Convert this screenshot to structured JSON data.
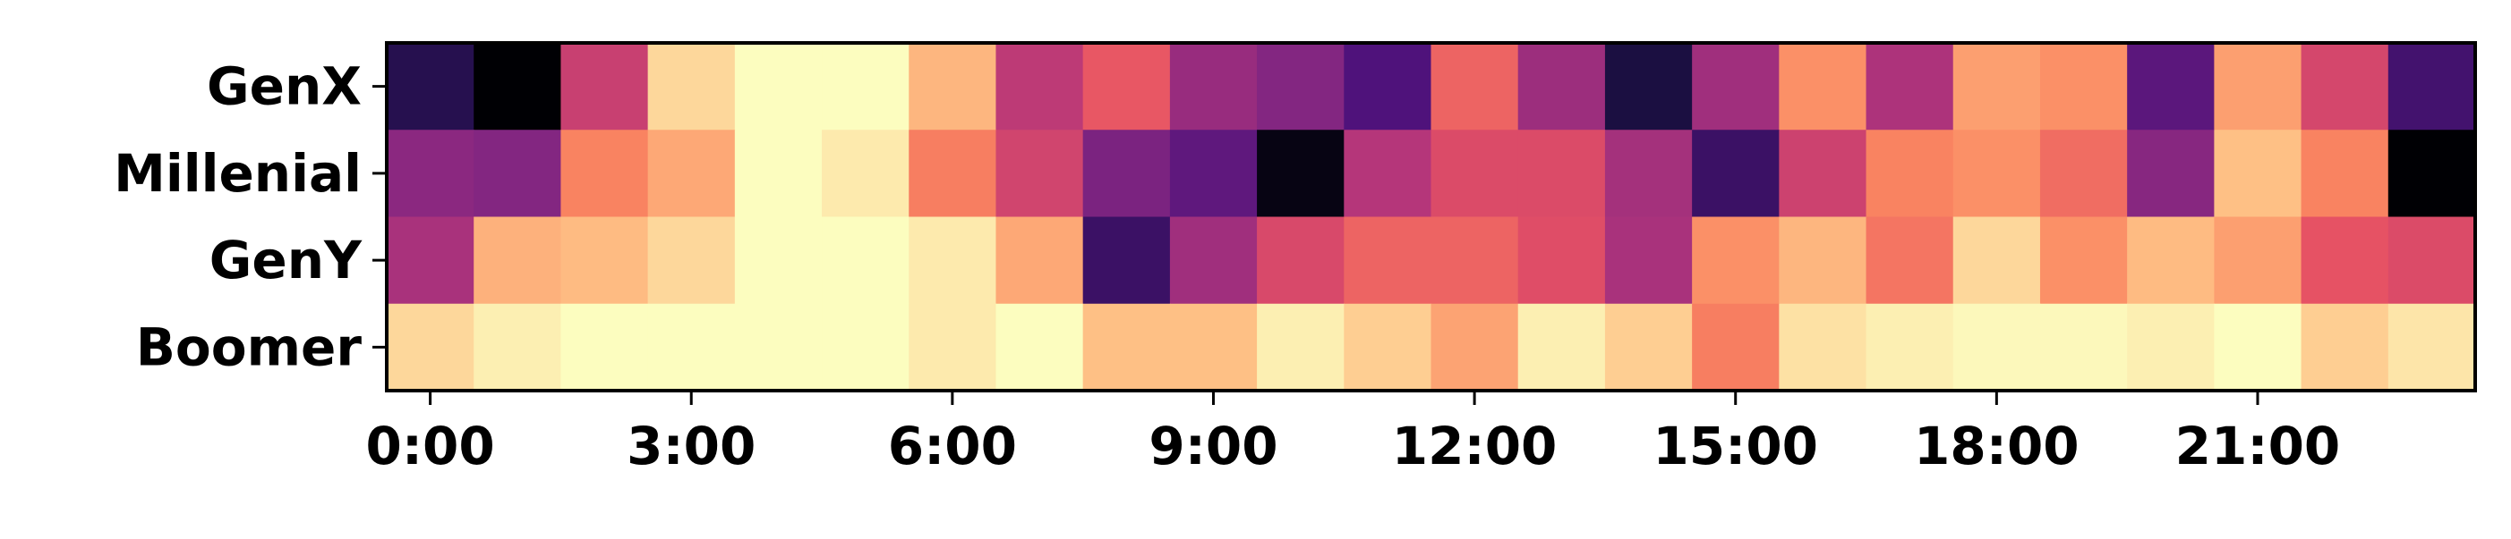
{
  "chart_data": {
    "type": "heatmap",
    "title": "",
    "xlabel": "",
    "ylabel": "",
    "colormap": "magma",
    "value_range": [
      0,
      1
    ],
    "grid": false,
    "legend": "none",
    "rows": [
      "GenX",
      "Millenial",
      "GenY",
      "Boomer"
    ],
    "columns": [
      "0:00",
      "1:00",
      "2:00",
      "3:00",
      "4:00",
      "5:00",
      "6:00",
      "7:00",
      "8:00",
      "9:00",
      "10:00",
      "11:00",
      "12:00",
      "13:00",
      "14:00",
      "15:00",
      "16:00",
      "17:00",
      "18:00",
      "19:00",
      "20:00",
      "21:00",
      "22:00",
      "23:00"
    ],
    "x_tick_labels": [
      "0:00",
      "3:00",
      "6:00",
      "9:00",
      "12:00",
      "15:00",
      "18:00",
      "21:00"
    ],
    "x_tick_columns": [
      0,
      3,
      6,
      9,
      12,
      15,
      18,
      21
    ],
    "values": [
      [
        0.15,
        0.0,
        0.55,
        0.92,
        1.0,
        1.0,
        0.85,
        0.52,
        0.64,
        0.43,
        0.38,
        0.25,
        0.67,
        0.44,
        0.12,
        0.45,
        0.77,
        0.48,
        0.8,
        0.77,
        0.28,
        0.8,
        0.58,
        0.22
      ],
      [
        0.4,
        0.38,
        0.74,
        0.82,
        1.0,
        0.96,
        0.73,
        0.57,
        0.36,
        0.29,
        0.03,
        0.5,
        0.6,
        0.6,
        0.46,
        0.2,
        0.56,
        0.74,
        0.77,
        0.69,
        0.39,
        0.87,
        0.74,
        0.0
      ],
      [
        0.47,
        0.84,
        0.86,
        0.92,
        1.0,
        1.0,
        0.96,
        0.82,
        0.2,
        0.45,
        0.59,
        0.67,
        0.67,
        0.61,
        0.47,
        0.77,
        0.85,
        0.71,
        0.92,
        0.77,
        0.86,
        0.8,
        0.63,
        0.6
      ],
      [
        0.92,
        0.97,
        1.0,
        1.0,
        1.0,
        1.0,
        0.96,
        1.0,
        0.87,
        0.87,
        0.97,
        0.9,
        0.81,
        0.97,
        0.9,
        0.73,
        0.94,
        0.97,
        0.99,
        0.99,
        0.97,
        1.0,
        0.9,
        0.95
      ]
    ]
  }
}
